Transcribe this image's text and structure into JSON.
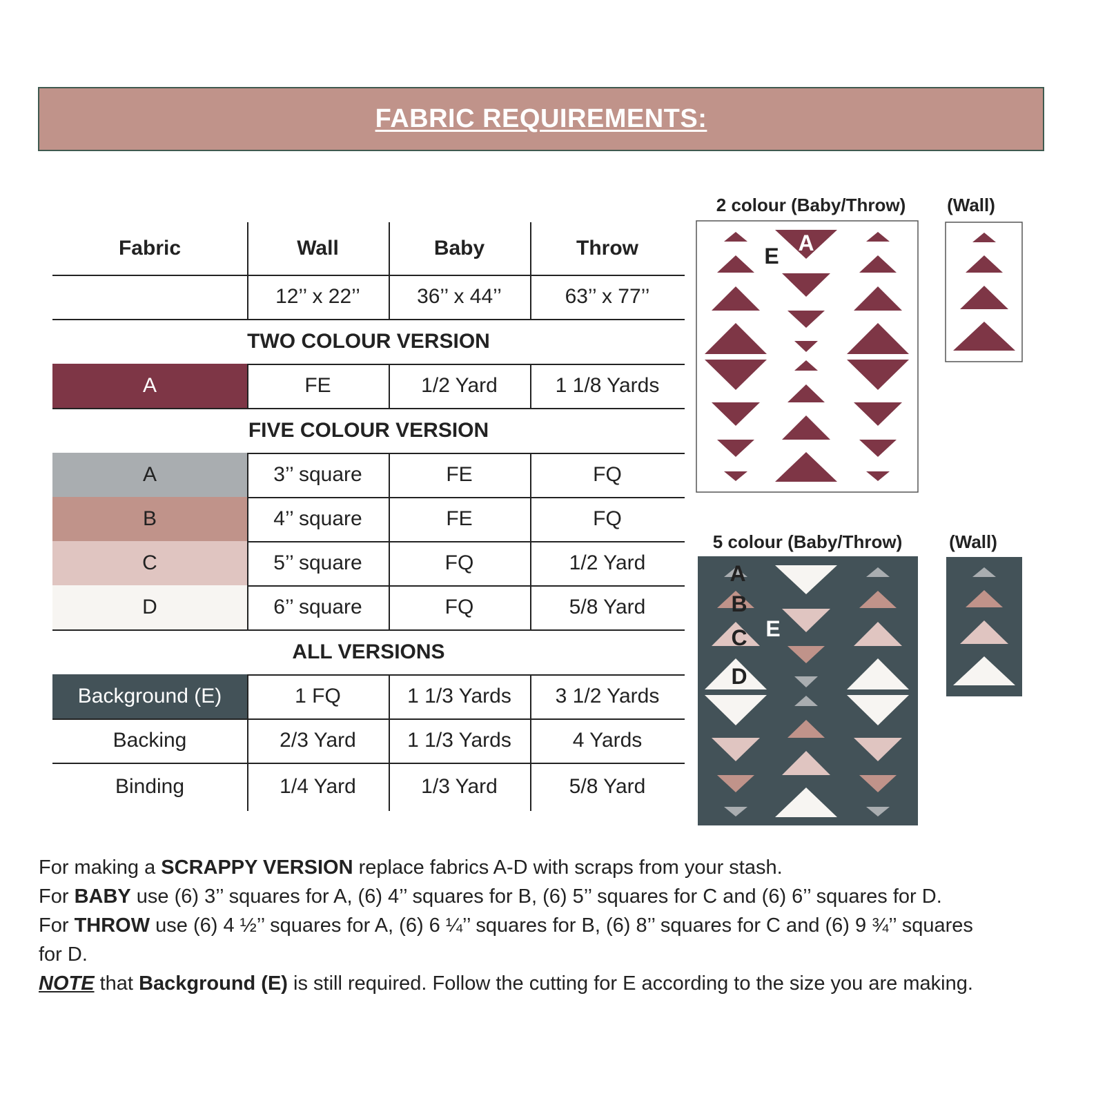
{
  "header": {
    "title": "FABRIC REQUIREMENTS:"
  },
  "table": {
    "columns": [
      "Fabric",
      "Wall",
      "Baby",
      "Throw"
    ],
    "sizes": [
      "12’’ x 22’’",
      "36’’ x 44’’",
      "63’’ x 77’’"
    ],
    "sections": [
      {
        "title": "TWO COLOUR VERSION",
        "rows": [
          {
            "cells": [
              "A",
              "FE",
              "1/2 Yard",
              "1 1/8 Yards"
            ],
            "color": "#7e3646"
          }
        ]
      },
      {
        "title": "FIVE COLOUR VERSION",
        "rows": [
          {
            "cells": [
              "A",
              "3’’ square",
              "FE",
              "FQ"
            ],
            "color": "#a9adb0"
          },
          {
            "cells": [
              "B",
              "4’’ square",
              "FE",
              "FQ"
            ],
            "color": "#c0938a"
          },
          {
            "cells": [
              "C",
              "5’’ square",
              "FQ",
              "1/2 Yard"
            ],
            "color": "#e0c5c1"
          },
          {
            "cells": [
              "D",
              "6’’ square",
              "FQ",
              "5/8 Yard"
            ],
            "color": "#f7f5f2"
          }
        ]
      },
      {
        "title": "ALL VERSIONS",
        "rows": [
          {
            "cells": [
              "Background (E)",
              "1 FQ",
              "1 1/3 Yards",
              "3 1/2 Yards"
            ],
            "color": "#435258"
          },
          {
            "cells": [
              "Backing",
              "2/3 Yard",
              "1 1/3 Yards",
              "4 Yards"
            ]
          },
          {
            "cells": [
              "Binding",
              "1/4 Yard",
              "1/3 Yard",
              "5/8 Yard"
            ]
          }
        ]
      }
    ]
  },
  "diagrams": [
    {
      "title": "2 colour (Baby/Throw)",
      "labels": [
        "E",
        "A"
      ]
    },
    {
      "title": "(Wall)"
    },
    {
      "title": "5 colour (Baby/Throw)",
      "labels": [
        "A",
        "B",
        "C",
        "E",
        "D"
      ]
    },
    {
      "title": "(Wall)"
    }
  ],
  "notes": [
    [
      "For making a ",
      "SCRAPPY VERSION",
      " replace fabrics A-D with scraps from your stash."
    ],
    [
      "For ",
      "BABY",
      " use (6) 3’’ squares for A, (6) 4’’ squares for B, (6) 5’’ squares for C and (6) 6’’ squares for D."
    ],
    [
      "For ",
      "THROW",
      " use (6) 4 ½’’ squares for A, (6) 6 ¼’’ squares for B, (6) 8’’ squares for C and (6) 9 ¾’’ squares for D."
    ],
    [
      "NOTE",
      " that ",
      "Background (E)",
      " is still required. Follow the cutting for E according to the size you are making."
    ]
  ]
}
